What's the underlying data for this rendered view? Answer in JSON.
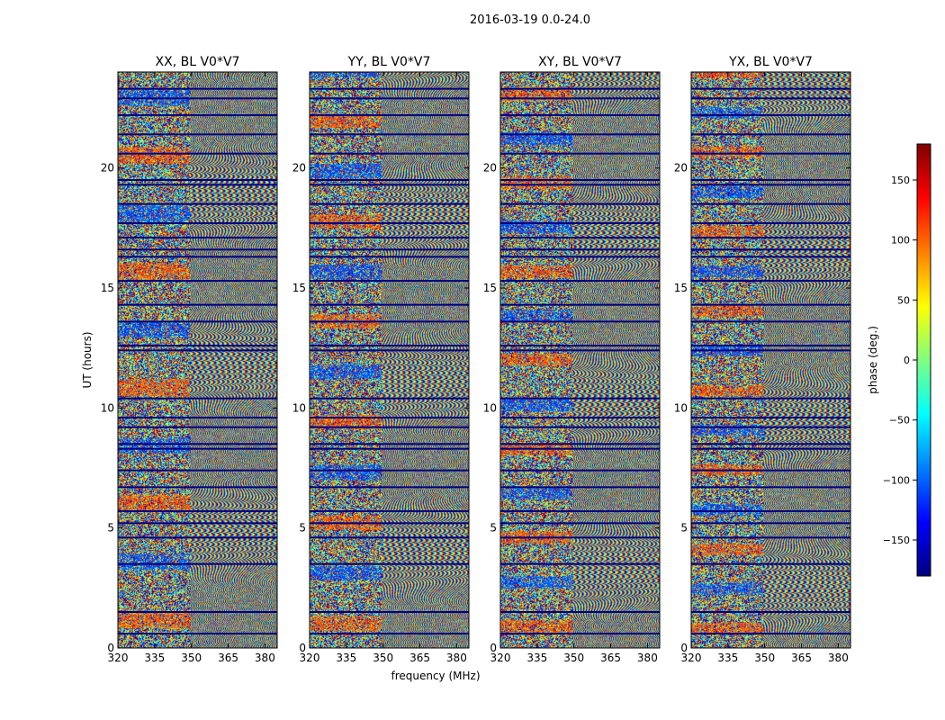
{
  "figure": {
    "title": "2016-03-19 0.0-24.0",
    "xlabel": "frequency (MHz)",
    "ylabel": "UT (hours)",
    "colorbar_label": "phase (deg.)"
  },
  "chart_data": {
    "type": "heatmap",
    "title": "2016-03-19 0.0-24.0",
    "xlabel": "frequency (MHz)",
    "ylabel": "UT (hours)",
    "xlim": [
      320,
      385
    ],
    "ylim": [
      0,
      24
    ],
    "xticks": [
      320,
      335,
      350,
      365,
      380
    ],
    "yticks": [
      0,
      5,
      10,
      15,
      20
    ],
    "grid": false,
    "colormap": "jet",
    "colorbar": {
      "label": "phase (deg.)",
      "range": [
        -180,
        180
      ],
      "ticks": [
        -150,
        -100,
        -50,
        0,
        50,
        100,
        150
      ],
      "placement": "right",
      "colors": [
        "#00007f",
        "#0000ff",
        "#007fff",
        "#00ffff",
        "#7fff7f",
        "#ffff00",
        "#ff7f00",
        "#ff0000",
        "#7f0000"
      ]
    },
    "panels": [
      {
        "title": "XX, BL V0*V7"
      },
      {
        "title": "YY, BL V0*V7"
      },
      {
        "title": "XY, BL V0*V7"
      },
      {
        "title": "YX, BL V0*V7"
      }
    ],
    "gaps_ut": [
      0.6,
      1.5,
      3.5,
      4.6,
      5.2,
      5.7,
      6.7,
      7.4,
      8.3,
      8.5,
      9.2,
      9.6,
      10.4,
      12.4,
      12.6,
      13.6,
      14.3,
      15.3,
      16.3,
      16.6,
      17.1,
      17.7,
      18.5,
      19.3,
      19.5,
      20.6,
      21.4,
      22.2,
      22.9,
      23.3
    ]
  }
}
